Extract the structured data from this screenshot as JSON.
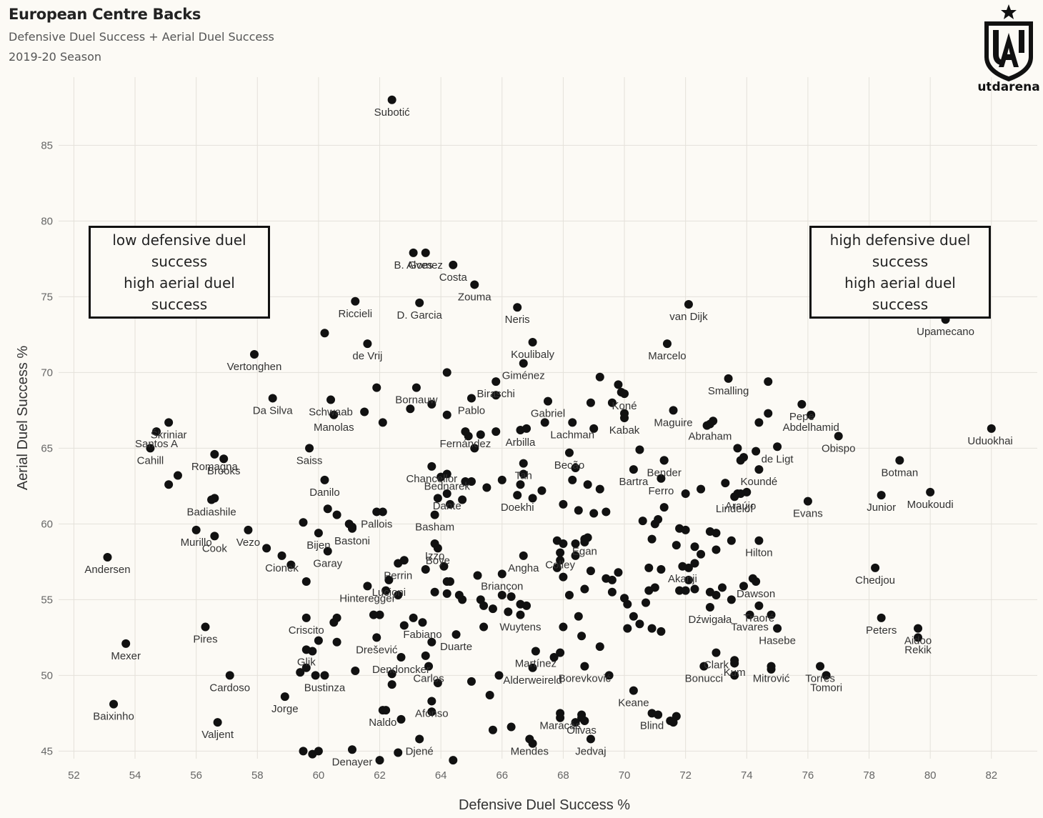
{
  "header": {
    "title": "European Centre Backs",
    "subtitle": "Defensive Duel Success + Aerial Duel Success",
    "season": "2019-20 Season"
  },
  "logo": {
    "text": "utdarena",
    "mark": "UA",
    "icon": "utdarena-crest-icon"
  },
  "annotations": {
    "top_left_line1": "low defensive duel success",
    "top_left_line2": "high aerial duel success",
    "top_right_line1": "high defensive duel success",
    "top_right_line2": "high aerial duel success"
  },
  "chart_data": {
    "type": "scatter",
    "xlabel": "Defensive Duel Success %",
    "ylabel": "Aerial Duel Success %",
    "xlim": [
      51.5,
      83.5
    ],
    "ylim": [
      44.5,
      89.5
    ],
    "xticks": [
      52,
      54,
      56,
      58,
      60,
      62,
      64,
      66,
      68,
      70,
      72,
      74,
      76,
      78,
      80,
      82
    ],
    "yticks": [
      45,
      50,
      55,
      60,
      65,
      70,
      75,
      80,
      85
    ],
    "grid": true,
    "marker_color": "#111111",
    "labeled_points": [
      {
        "label": "Subotić",
        "x": 62.4,
        "y": 88.0
      },
      {
        "label": "Gomez",
        "x": 63.5,
        "y": 77.9
      },
      {
        "label": "B. Alves",
        "x": 63.1,
        "y": 77.9
      },
      {
        "label": "Costa",
        "x": 64.4,
        "y": 77.1
      },
      {
        "label": "Zouma",
        "x": 65.1,
        "y": 75.8
      },
      {
        "label": "Riccieli",
        "x": 61.2,
        "y": 74.7
      },
      {
        "label": "D. Garcia",
        "x": 63.3,
        "y": 74.6
      },
      {
        "label": "Neris",
        "x": 66.5,
        "y": 74.3
      },
      {
        "label": "van Dijk",
        "x": 72.1,
        "y": 74.5
      },
      {
        "label": "Upamecano",
        "x": 80.5,
        "y": 73.5
      },
      {
        "label": "de Vrij",
        "x": 61.6,
        "y": 71.9
      },
      {
        "label": "Koulibaly",
        "x": 67.0,
        "y": 72.0
      },
      {
        "label": "Marcelo",
        "x": 71.4,
        "y": 71.9
      },
      {
        "label": "Vertonghen",
        "x": 57.9,
        "y": 71.2
      },
      {
        "label": "Giménez",
        "x": 66.7,
        "y": 70.6
      },
      {
        "label": "Smalling",
        "x": 73.4,
        "y": 69.6
      },
      {
        "label": "Schwaab",
        "x": 60.4,
        "y": 68.2
      },
      {
        "label": "Bornauw",
        "x": 63.2,
        "y": 69.0
      },
      {
        "label": "Biraschi",
        "x": 65.8,
        "y": 69.4
      },
      {
        "label": "Koné",
        "x": 70.0,
        "y": 68.6
      },
      {
        "label": "Maguire",
        "x": 71.6,
        "y": 67.5
      },
      {
        "label": "Da Silva",
        "x": 58.5,
        "y": 68.3
      },
      {
        "label": "Gabriel",
        "x": 67.5,
        "y": 68.1
      },
      {
        "label": "Pepe",
        "x": 75.8,
        "y": 67.9
      },
      {
        "label": "Abraham",
        "x": 72.8,
        "y": 66.6
      },
      {
        "label": "Manolas",
        "x": 60.5,
        "y": 67.2
      },
      {
        "label": "Pablo",
        "x": 65.0,
        "y": 68.3
      },
      {
        "label": "Kabak",
        "x": 70.0,
        "y": 67.0
      },
      {
        "label": "Abdelhamid",
        "x": 76.1,
        "y": 67.2
      },
      {
        "label": "Škriniar",
        "x": 55.1,
        "y": 66.7
      },
      {
        "label": "Santos A",
        "x": 54.7,
        "y": 66.1
      },
      {
        "label": "Fernández",
        "x": 64.8,
        "y": 66.1
      },
      {
        "label": "Uduokhai",
        "x": 82.0,
        "y": 66.3
      },
      {
        "label": "Romagna",
        "x": 56.6,
        "y": 64.6
      },
      {
        "label": "Lachman",
        "x": 68.3,
        "y": 66.7
      },
      {
        "label": "Arbilla",
        "x": 66.6,
        "y": 66.2
      },
      {
        "label": "Obispo",
        "x": 77.0,
        "y": 65.8
      },
      {
        "label": "de Ligt",
        "x": 75.0,
        "y": 65.1
      },
      {
        "label": "Cahill",
        "x": 54.5,
        "y": 65.0
      },
      {
        "label": "Saiss",
        "x": 59.7,
        "y": 65.0
      },
      {
        "label": "Becão",
        "x": 68.2,
        "y": 64.7
      },
      {
        "label": "Bender",
        "x": 71.3,
        "y": 64.2
      },
      {
        "label": "Tah",
        "x": 66.7,
        "y": 64.0
      },
      {
        "label": "Chancellor",
        "x": 63.7,
        "y": 63.8
      },
      {
        "label": "Bednarek",
        "x": 64.2,
        "y": 63.3
      },
      {
        "label": "Brooks",
        "x": 56.9,
        "y": 64.3
      },
      {
        "label": "Koundé",
        "x": 74.4,
        "y": 63.6
      },
      {
        "label": "Botman",
        "x": 79.0,
        "y": 64.2
      },
      {
        "label": "Danilo",
        "x": 60.2,
        "y": 62.9
      },
      {
        "label": "Dante",
        "x": 64.2,
        "y": 62.0
      },
      {
        "label": "Bartra",
        "x": 70.3,
        "y": 63.6
      },
      {
        "label": "Ferro",
        "x": 71.2,
        "y": 63.0
      },
      {
        "label": "Araújo",
        "x": 73.8,
        "y": 62.0
      },
      {
        "label": "Moukoudi",
        "x": 80.0,
        "y": 62.1
      },
      {
        "label": "Junior",
        "x": 78.4,
        "y": 61.9
      },
      {
        "label": "Evans",
        "x": 76.0,
        "y": 61.5
      },
      {
        "label": "Badiashile",
        "x": 56.5,
        "y": 61.6
      },
      {
        "label": "Pallois",
        "x": 61.9,
        "y": 60.8
      },
      {
        "label": "Doekhi",
        "x": 66.5,
        "y": 61.9
      },
      {
        "label": "Lindelöf",
        "x": 73.6,
        "y": 61.8
      },
      {
        "label": "Basham",
        "x": 63.8,
        "y": 60.6
      },
      {
        "label": "Bastoni",
        "x": 61.1,
        "y": 59.7
      },
      {
        "label": "Izzo",
        "x": 63.8,
        "y": 58.7
      },
      {
        "label": "Murillo",
        "x": 56.0,
        "y": 59.6
      },
      {
        "label": "Vezo",
        "x": 57.7,
        "y": 59.6
      },
      {
        "label": "Bijen",
        "x": 60.0,
        "y": 59.4
      },
      {
        "label": "Cook",
        "x": 56.6,
        "y": 59.2
      },
      {
        "label": "Egan",
        "x": 68.7,
        "y": 59.0
      },
      {
        "label": "Hilton",
        "x": 74.4,
        "y": 58.9
      },
      {
        "label": "Angha",
        "x": 66.7,
        "y": 57.9
      },
      {
        "label": "Colley",
        "x": 67.9,
        "y": 58.1
      },
      {
        "label": "Andersen",
        "x": 53.1,
        "y": 57.8
      },
      {
        "label": "Perrin",
        "x": 62.6,
        "y": 57.4
      },
      {
        "label": "Boye",
        "x": 63.9,
        "y": 58.4
      },
      {
        "label": "Cionek",
        "x": 58.8,
        "y": 57.9
      },
      {
        "label": "Garay",
        "x": 60.3,
        "y": 58.2
      },
      {
        "label": "Akanji",
        "x": 71.9,
        "y": 57.2
      },
      {
        "label": "Chedjou",
        "x": 78.2,
        "y": 57.1
      },
      {
        "label": "Lucioni",
        "x": 62.3,
        "y": 56.3
      },
      {
        "label": "Briançon",
        "x": 66.0,
        "y": 56.7
      },
      {
        "label": "Dawson",
        "x": 74.3,
        "y": 56.2
      },
      {
        "label": "Hinteregger",
        "x": 61.6,
        "y": 55.9
      },
      {
        "label": "Traoré",
        "x": 74.4,
        "y": 54.6
      },
      {
        "label": "Criscito",
        "x": 59.6,
        "y": 53.8
      },
      {
        "label": "Fabiano",
        "x": 63.4,
        "y": 53.5
      },
      {
        "label": "Dźwigała",
        "x": 72.8,
        "y": 54.5
      },
      {
        "label": "Peters",
        "x": 78.4,
        "y": 53.8
      },
      {
        "label": "Pires",
        "x": 56.3,
        "y": 53.2
      },
      {
        "label": "Wuytens",
        "x": 66.6,
        "y": 54.0
      },
      {
        "label": "Tavares",
        "x": 74.1,
        "y": 54.0
      },
      {
        "label": "Hasebe",
        "x": 75.0,
        "y": 53.1
      },
      {
        "label": "Aidoo",
        "x": 79.6,
        "y": 53.1
      },
      {
        "label": "Drešević",
        "x": 61.9,
        "y": 52.5
      },
      {
        "label": "Duarte",
        "x": 64.5,
        "y": 52.7
      },
      {
        "label": "Mexer",
        "x": 53.7,
        "y": 52.1
      },
      {
        "label": "Rekik",
        "x": 79.6,
        "y": 52.5
      },
      {
        "label": "Glik",
        "x": 59.6,
        "y": 51.7
      },
      {
        "label": "Dendoncker",
        "x": 62.7,
        "y": 51.2
      },
      {
        "label": "Martínez",
        "x": 67.1,
        "y": 51.6
      },
      {
        "label": "Borevković",
        "x": 68.7,
        "y": 50.6
      },
      {
        "label": "Clark",
        "x": 73.0,
        "y": 51.5
      },
      {
        "label": "Kum",
        "x": 73.6,
        "y": 51.0
      },
      {
        "label": "Torres",
        "x": 76.4,
        "y": 50.6
      },
      {
        "label": "Carlos",
        "x": 63.6,
        "y": 50.6
      },
      {
        "label": "Cardoso",
        "x": 57.1,
        "y": 50.0
      },
      {
        "label": "Bonucci",
        "x": 72.6,
        "y": 50.6
      },
      {
        "label": "Alderweireld",
        "x": 67.0,
        "y": 50.5
      },
      {
        "label": "Bustinza",
        "x": 60.2,
        "y": 50.0
      },
      {
        "label": "Mitrović",
        "x": 74.8,
        "y": 50.6
      },
      {
        "label": "Tomori",
        "x": 76.6,
        "y": 50.0
      },
      {
        "label": "Keane",
        "x": 70.3,
        "y": 49.0
      },
      {
        "label": "Jorge",
        "x": 58.9,
        "y": 48.6
      },
      {
        "label": "Afonso",
        "x": 63.7,
        "y": 48.3
      },
      {
        "label": "Baixinho",
        "x": 53.3,
        "y": 48.1
      },
      {
        "label": "Olivas",
        "x": 68.6,
        "y": 47.2
      },
      {
        "label": "Maracás",
        "x": 67.9,
        "y": 47.5
      },
      {
        "label": "Blind",
        "x": 70.9,
        "y": 47.5
      },
      {
        "label": "Valjent",
        "x": 56.7,
        "y": 46.9
      },
      {
        "label": "Denayer",
        "x": 61.1,
        "y": 45.1
      },
      {
        "label": "Naldo",
        "x": 62.1,
        "y": 47.7
      },
      {
        "label": "Djené",
        "x": 63.3,
        "y": 45.8
      },
      {
        "label": "Mendes",
        "x": 66.9,
        "y": 45.8
      },
      {
        "label": "Jedvaj",
        "x": 68.9,
        "y": 45.8
      }
    ],
    "unlabeled_points": [
      [
        55.1,
        62.6
      ],
      [
        55.4,
        63.2
      ],
      [
        56.6,
        61.7
      ],
      [
        60.2,
        72.6
      ],
      [
        61.9,
        69.0
      ],
      [
        61.5,
        67.4
      ],
      [
        62.1,
        66.7
      ],
      [
        63.0,
        67.6
      ],
      [
        63.7,
        67.9
      ],
      [
        64.2,
        70.0
      ],
      [
        64.2,
        67.2
      ],
      [
        65.1,
        65.0
      ],
      [
        64.9,
        65.8
      ],
      [
        65.3,
        65.9
      ],
      [
        65.8,
        68.5
      ],
      [
        65.8,
        66.1
      ],
      [
        66.8,
        66.3
      ],
      [
        67.4,
        66.7
      ],
      [
        68.4,
        63.7
      ],
      [
        66.6,
        62.6
      ],
      [
        66.0,
        62.9
      ],
      [
        65.5,
        62.4
      ],
      [
        65.0,
        62.8
      ],
      [
        64.8,
        62.8
      ],
      [
        64.3,
        61.3
      ],
      [
        64.7,
        61.6
      ],
      [
        64.0,
        63.1
      ],
      [
        63.9,
        61.7
      ],
      [
        66.7,
        63.3
      ],
      [
        67.0,
        61.7
      ],
      [
        67.3,
        62.2
      ],
      [
        68.0,
        61.3
      ],
      [
        68.3,
        62.9
      ],
      [
        68.8,
        62.6
      ],
      [
        69.2,
        62.3
      ],
      [
        68.5,
        60.9
      ],
      [
        69.0,
        60.7
      ],
      [
        69.4,
        60.8
      ],
      [
        69.2,
        69.7
      ],
      [
        69.6,
        68.0
      ],
      [
        69.8,
        69.2
      ],
      [
        69.9,
        68.7
      ],
      [
        70.5,
        64.9
      ],
      [
        69.0,
        66.3
      ],
      [
        68.9,
        68.0
      ],
      [
        70.0,
        67.3
      ],
      [
        71.3,
        64.2
      ],
      [
        71.1,
        60.3
      ],
      [
        71.3,
        61.1
      ],
      [
        70.6,
        60.2
      ],
      [
        71.0,
        60.0
      ],
      [
        70.9,
        59.0
      ],
      [
        71.7,
        58.6
      ],
      [
        71.8,
        59.7
      ],
      [
        72.0,
        59.6
      ],
      [
        72.0,
        62.0
      ],
      [
        72.5,
        62.3
      ],
      [
        72.3,
        58.5
      ],
      [
        72.5,
        58.0
      ],
      [
        72.8,
        59.5
      ],
      [
        73.0,
        59.4
      ],
      [
        73.3,
        62.7
      ],
      [
        73.5,
        58.9
      ],
      [
        73.0,
        58.3
      ],
      [
        72.3,
        57.4
      ],
      [
        72.1,
        57.1
      ],
      [
        72.1,
        56.3
      ],
      [
        71.8,
        55.6
      ],
      [
        72.0,
        55.6
      ],
      [
        72.3,
        55.7
      ],
      [
        72.8,
        55.5
      ],
      [
        73.0,
        55.3
      ],
      [
        73.5,
        55.0
      ],
      [
        73.2,
        55.8
      ],
      [
        71.0,
        55.8
      ],
      [
        70.8,
        55.6
      ],
      [
        70.7,
        54.8
      ],
      [
        70.0,
        55.1
      ],
      [
        70.1,
        54.7
      ],
      [
        69.6,
        55.5
      ],
      [
        69.6,
        56.3
      ],
      [
        69.8,
        56.8
      ],
      [
        69.4,
        56.4
      ],
      [
        68.9,
        56.9
      ],
      [
        68.7,
        55.7
      ],
      [
        68.0,
        56.5
      ],
      [
        67.8,
        57.1
      ],
      [
        67.9,
        57.6
      ],
      [
        68.4,
        57.9
      ],
      [
        68.7,
        58.8
      ],
      [
        68.8,
        59.1
      ],
      [
        68.4,
        58.7
      ],
      [
        68.0,
        58.7
      ],
      [
        67.8,
        58.9
      ],
      [
        70.8,
        57.1
      ],
      [
        71.2,
        57.0
      ],
      [
        70.3,
        53.9
      ],
      [
        70.5,
        53.4
      ],
      [
        70.1,
        53.1
      ],
      [
        70.9,
        53.1
      ],
      [
        71.2,
        52.9
      ],
      [
        69.2,
        51.9
      ],
      [
        68.6,
        52.6
      ],
      [
        68.0,
        53.2
      ],
      [
        67.9,
        51.5
      ],
      [
        67.7,
        51.2
      ],
      [
        68.2,
        55.3
      ],
      [
        68.5,
        53.9
      ],
      [
        69.5,
        50.0
      ],
      [
        68.6,
        47.4
      ],
      [
        66.0,
        55.3
      ],
      [
        66.2,
        54.2
      ],
      [
        66.3,
        55.2
      ],
      [
        66.6,
        54.7
      ],
      [
        66.8,
        54.6
      ],
      [
        65.7,
        54.4
      ],
      [
        65.3,
        55.0
      ],
      [
        65.4,
        54.6
      ],
      [
        65.4,
        53.2
      ],
      [
        64.7,
        55.0
      ],
      [
        64.2,
        55.4
      ],
      [
        64.3,
        56.2
      ],
      [
        64.1,
        57.2
      ],
      [
        63.8,
        55.5
      ],
      [
        63.5,
        57.0
      ],
      [
        62.8,
        57.6
      ],
      [
        62.2,
        55.6
      ],
      [
        62.0,
        54.0
      ],
      [
        62.6,
        55.3
      ],
      [
        63.1,
        53.8
      ],
      [
        60.5,
        53.5
      ],
      [
        60.6,
        53.8
      ],
      [
        60.6,
        52.2
      ],
      [
        60.0,
        52.3
      ],
      [
        59.8,
        51.6
      ],
      [
        59.4,
        50.2
      ],
      [
        59.6,
        50.5
      ],
      [
        59.9,
        50.0
      ],
      [
        62.4,
        50.1
      ],
      [
        62.4,
        49.4
      ],
      [
        61.2,
        50.3
      ],
      [
        61.8,
        54.0
      ],
      [
        59.6,
        56.2
      ],
      [
        59.1,
        57.3
      ],
      [
        58.3,
        58.4
      ],
      [
        59.5,
        60.1
      ],
      [
        60.3,
        61.0
      ],
      [
        60.6,
        60.6
      ],
      [
        61.0,
        60.0
      ],
      [
        61.1,
        59.8
      ],
      [
        62.1,
        60.8
      ],
      [
        65.2,
        56.6
      ],
      [
        64.2,
        56.2
      ],
      [
        64.6,
        55.3
      ],
      [
        63.7,
        52.2
      ],
      [
        63.5,
        51.3
      ],
      [
        62.8,
        53.3
      ],
      [
        63.9,
        49.5
      ],
      [
        65.0,
        49.6
      ],
      [
        65.6,
        48.7
      ],
      [
        65.9,
        50.0
      ],
      [
        66.3,
        46.6
      ],
      [
        65.7,
        46.4
      ],
      [
        67.0,
        45.5
      ],
      [
        67.9,
        47.2
      ],
      [
        68.7,
        47.0
      ],
      [
        68.4,
        46.9
      ],
      [
        62.2,
        47.7
      ],
      [
        62.7,
        47.1
      ],
      [
        63.7,
        47.6
      ],
      [
        64.4,
        44.4
      ],
      [
        62.6,
        44.9
      ],
      [
        62.0,
        44.4
      ],
      [
        59.5,
        45.0
      ],
      [
        59.8,
        44.8
      ],
      [
        60.0,
        45.0
      ],
      [
        71.1,
        47.4
      ],
      [
        71.5,
        47.0
      ],
      [
        71.6,
        46.9
      ],
      [
        71.7,
        47.3
      ],
      [
        73.6,
        50.0
      ],
      [
        73.6,
        50.8
      ],
      [
        74.8,
        50.4
      ],
      [
        74.8,
        54.0
      ],
      [
        74.2,
        56.4
      ],
      [
        73.9,
        55.9
      ],
      [
        73.8,
        64.2
      ],
      [
        73.9,
        64.4
      ],
      [
        74.0,
        62.1
      ],
      [
        74.3,
        64.8
      ],
      [
        74.4,
        66.7
      ],
      [
        74.7,
        67.3
      ],
      [
        74.7,
        69.4
      ],
      [
        72.9,
        66.8
      ],
      [
        72.7,
        66.5
      ],
      [
        73.7,
        65.0
      ],
      [
        73.7,
        62.0
      ],
      [
        76.6,
        50.0
      ]
    ]
  }
}
